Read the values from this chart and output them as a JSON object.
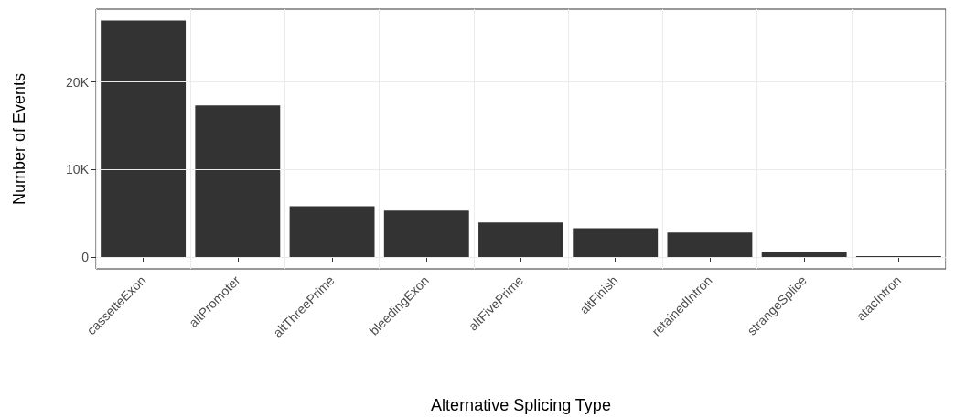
{
  "chart_data": {
    "type": "bar",
    "xlabel": "Alternative Splicing Type",
    "ylabel": "Number of Events",
    "categories": [
      "cassetteExon",
      "altPromoter",
      "altThreePrime",
      "bleedingExon",
      "altFivePrime",
      "altFinish",
      "retainedIntron",
      "strangeSplice",
      "atacIntron"
    ],
    "values": [
      27000,
      17300,
      5800,
      5300,
      3950,
      3300,
      2800,
      600,
      100
    ],
    "color": "#333333",
    "ylim": [
      -1350,
      28300
    ],
    "yticks": [
      0,
      {
        "value": 10000,
        "label": "10K"
      },
      {
        "value": 20000,
        "label": "20K"
      }
    ],
    "grid": true
  }
}
